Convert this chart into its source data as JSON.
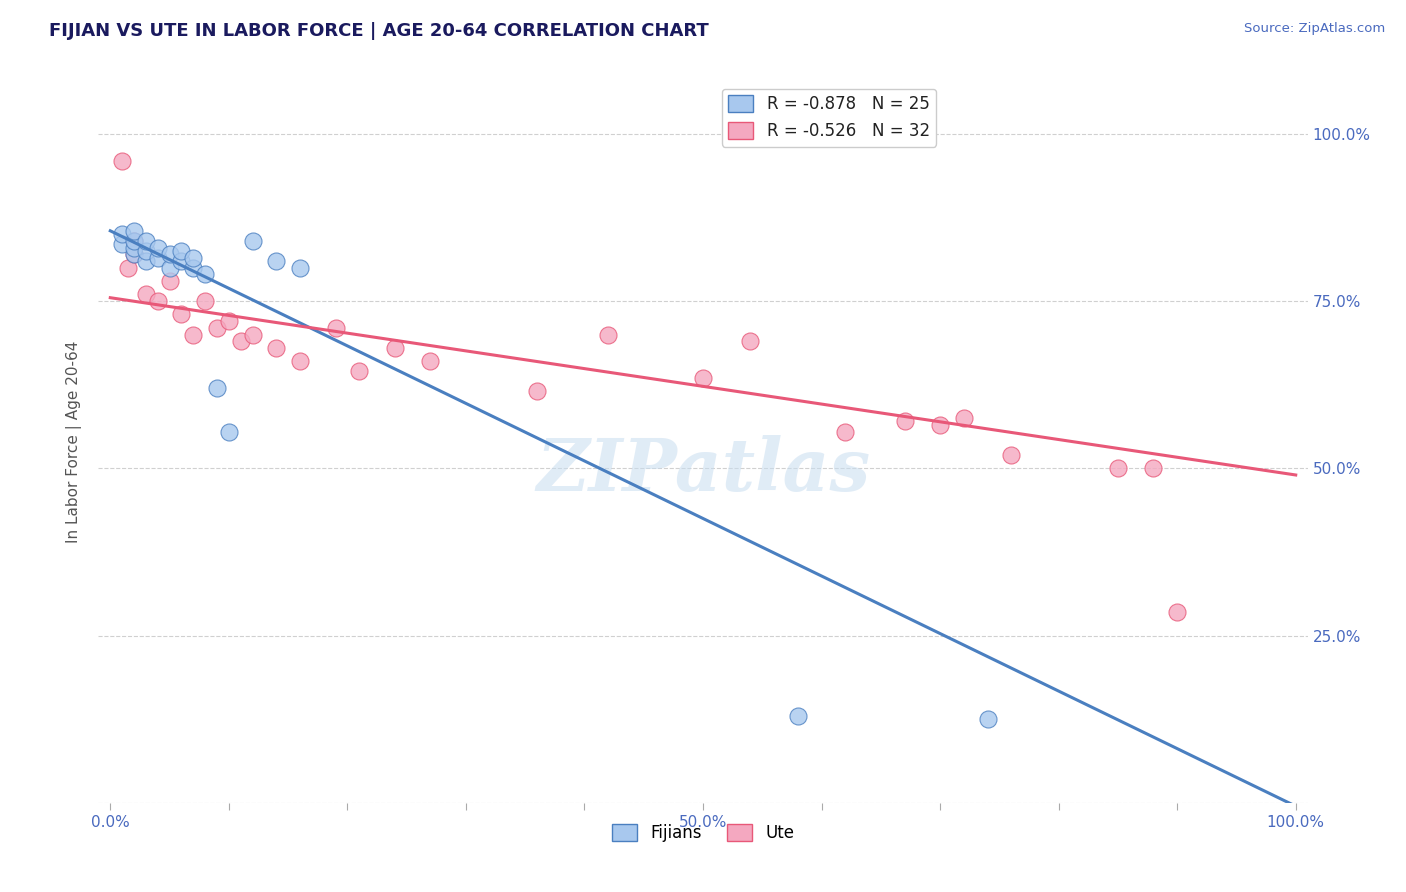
{
  "title": "FIJIAN VS UTE IN LABOR FORCE | AGE 20-64 CORRELATION CHART",
  "ylabel": "In Labor Force | Age 20-64",
  "source_text": "Source: ZipAtlas.com",
  "fijian_r": -0.878,
  "fijian_n": 25,
  "ute_r": -0.526,
  "ute_n": 32,
  "fijian_color": "#a8c8ee",
  "ute_color": "#f4a8c0",
  "fijian_line_color": "#4a7fc0",
  "ute_line_color": "#e85878",
  "watermark": "ZIPatlas",
  "x_ticks": [
    0.0,
    0.1,
    0.2,
    0.3,
    0.4,
    0.5,
    0.6,
    0.7,
    0.8,
    0.9,
    1.0
  ],
  "x_tick_labels": [
    "0.0%",
    "",
    "",
    "",
    "",
    "50.0%",
    "",
    "",
    "",
    "",
    "100.0%"
  ],
  "y_ticks": [
    0.0,
    0.25,
    0.5,
    0.75,
    1.0
  ],
  "y_tick_labels_right": [
    "",
    "25.0%",
    "50.0%",
    "75.0%",
    "100.0%"
  ],
  "fijian_x": [
    0.01,
    0.01,
    0.02,
    0.02,
    0.02,
    0.02,
    0.03,
    0.03,
    0.03,
    0.04,
    0.04,
    0.05,
    0.05,
    0.06,
    0.06,
    0.07,
    0.07,
    0.08,
    0.09,
    0.1,
    0.12,
    0.14,
    0.16,
    0.58,
    0.74
  ],
  "fijian_y": [
    0.835,
    0.85,
    0.82,
    0.83,
    0.84,
    0.855,
    0.81,
    0.825,
    0.84,
    0.815,
    0.83,
    0.8,
    0.82,
    0.81,
    0.825,
    0.8,
    0.815,
    0.79,
    0.62,
    0.555,
    0.84,
    0.81,
    0.8,
    0.13,
    0.125
  ],
  "ute_x": [
    0.01,
    0.015,
    0.02,
    0.02,
    0.03,
    0.04,
    0.05,
    0.06,
    0.07,
    0.08,
    0.09,
    0.1,
    0.11,
    0.12,
    0.14,
    0.16,
    0.19,
    0.21,
    0.24,
    0.27,
    0.36,
    0.42,
    0.5,
    0.54,
    0.62,
    0.67,
    0.7,
    0.72,
    0.76,
    0.85,
    0.88,
    0.9
  ],
  "ute_y": [
    0.96,
    0.8,
    0.82,
    0.84,
    0.76,
    0.75,
    0.78,
    0.73,
    0.7,
    0.75,
    0.71,
    0.72,
    0.69,
    0.7,
    0.68,
    0.66,
    0.71,
    0.645,
    0.68,
    0.66,
    0.615,
    0.7,
    0.635,
    0.69,
    0.555,
    0.57,
    0.565,
    0.575,
    0.52,
    0.5,
    0.5,
    0.285
  ],
  "fijian_line_x0": 0.0,
  "fijian_line_y0": 0.855,
  "fijian_line_x1": 1.0,
  "fijian_line_y1": -0.005,
  "ute_line_x0": 0.0,
  "ute_line_y0": 0.755,
  "ute_line_x1": 1.0,
  "ute_line_y1": 0.49,
  "ylim_min": 0.0,
  "ylim_max": 1.08,
  "xlim_min": -0.01,
  "xlim_max": 1.01,
  "grid_color": "#d0d0d0",
  "bg_color": "#ffffff",
  "title_color": "#1a1a5e",
  "label_color": "#4a6abf",
  "legend_label1": "Fijians",
  "legend_label2": "Ute"
}
